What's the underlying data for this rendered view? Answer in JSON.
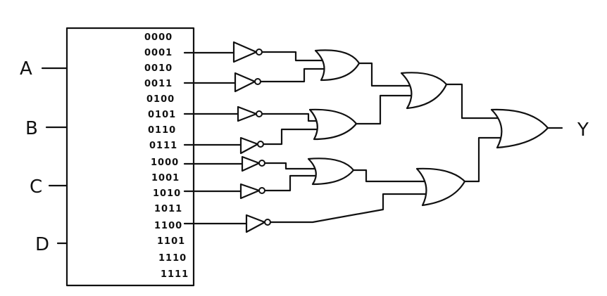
{
  "decoder": {
    "inputs": [
      "A",
      "B",
      "C",
      "D"
    ],
    "outputs": [
      "0000",
      "0001",
      "0010",
      "0011",
      "0100",
      "0101",
      "0110",
      "0111",
      "1000",
      "1001",
      "1010",
      "1011",
      "1100",
      "1101",
      "1110",
      "1111"
    ]
  },
  "output_label": "Y",
  "colors": {
    "ink": "#111111",
    "background": "#ffffff"
  }
}
